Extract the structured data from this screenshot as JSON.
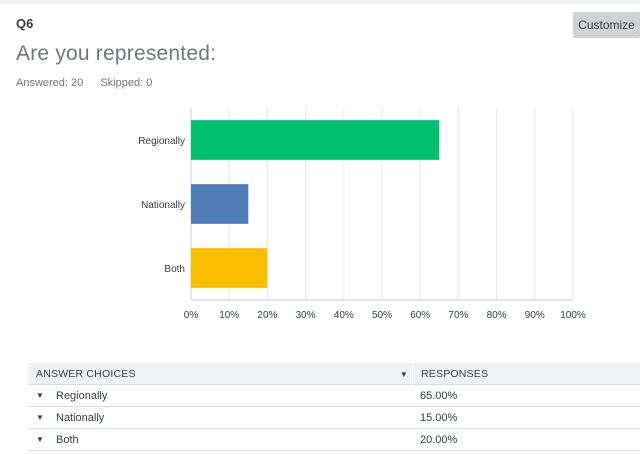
{
  "question": {
    "number": "Q6",
    "title": "Are you represented:",
    "answered_label": "Answered: 20",
    "skipped_label": "Skipped: 0",
    "customize_label": "Customize"
  },
  "chart_data": {
    "type": "bar",
    "orientation": "horizontal",
    "categories": [
      "Regionally",
      "Nationally",
      "Both"
    ],
    "values": [
      65,
      15,
      20
    ],
    "colors": [
      "#00bf6f",
      "#507cb6",
      "#f9be00"
    ],
    "xlim": [
      0,
      100
    ],
    "ticks": [
      "0%",
      "10%",
      "20%",
      "30%",
      "40%",
      "50%",
      "60%",
      "70%",
      "80%",
      "90%",
      "100%"
    ],
    "grid": true,
    "title": "",
    "xlabel": "",
    "ylabel": ""
  },
  "table": {
    "header_choices": "ANSWER CHOICES",
    "header_responses": "RESPONSES",
    "rows": [
      {
        "choice": "Regionally",
        "response": "65.00%"
      },
      {
        "choice": "Nationally",
        "response": "15.00%"
      },
      {
        "choice": "Both",
        "response": "20.00%"
      }
    ]
  }
}
